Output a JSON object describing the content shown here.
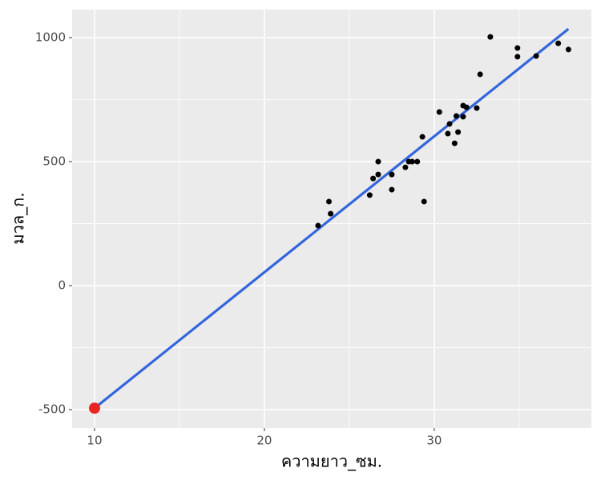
{
  "chart_data": {
    "type": "scatter",
    "xlabel": "ความยาว_ซม.",
    "ylabel": "มวล_ก.",
    "xlim": [
      8.68,
      39.25
    ],
    "ylim": [
      -574,
      1113
    ],
    "xticks": [
      10,
      20,
      30
    ],
    "yticks": [
      -500,
      0,
      500,
      1000
    ],
    "x_minor_grid": [
      15,
      25,
      35
    ],
    "y_minor_grid": [
      -250,
      250,
      750
    ],
    "grid": true,
    "series": [
      {
        "type": "scatter",
        "color": "#000000",
        "point_size": 3.5,
        "x": [
          23.16,
          23.8,
          23.9,
          26.2,
          26.4,
          26.7,
          26.7,
          27.5,
          27.5,
          28.3,
          28.5,
          28.7,
          29.0,
          29.3,
          29.4,
          30.3,
          30.8,
          30.9,
          31.2,
          31.3,
          31.4,
          31.7,
          31.7,
          31.9,
          32.5,
          32.7,
          33.3,
          34.9,
          34.9,
          36.0,
          37.3,
          37.9
        ],
        "values": [
          242,
          339,
          290,
          365,
          432,
          448,
          500,
          387,
          448,
          477,
          500,
          500,
          500,
          600,
          339,
          700,
          613,
          652,
          574,
          684,
          619,
          681,
          726,
          719,
          716,
          852,
          1003,
          958,
          923,
          926,
          977,
          952
        ]
      },
      {
        "type": "line",
        "color": "#3366dd",
        "x": [
          10,
          37.9
        ],
        "values": [
          -494,
          1035
        ]
      },
      {
        "type": "scatter",
        "color": "#e8251f",
        "point_size": 7,
        "x": [
          10
        ],
        "values": [
          -494
        ]
      }
    ]
  }
}
